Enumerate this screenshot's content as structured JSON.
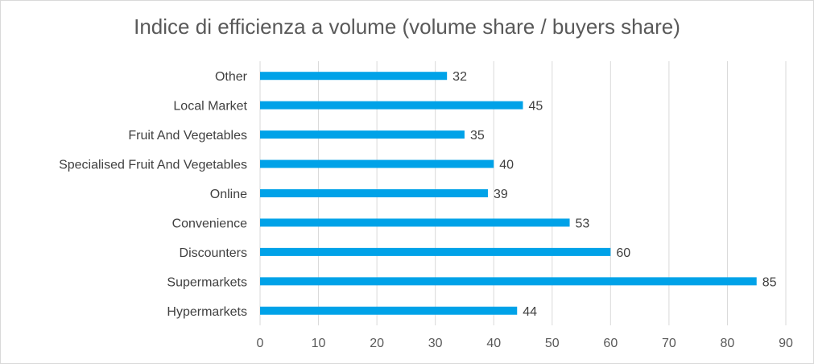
{
  "chart_data": {
    "type": "bar",
    "orientation": "horizontal",
    "title": "Indice di efficienza a volume (volume share / buyers share)",
    "categories": [
      "Other",
      "Local Market",
      "Fruit And Vegetables",
      "Specialised Fruit And Vegetables",
      "Online",
      "Convenience",
      "Discounters",
      "Supermarkets",
      "Hypermarkets"
    ],
    "values": [
      32,
      45,
      35,
      40,
      39,
      53,
      60,
      85,
      44
    ],
    "xlim": [
      0,
      90
    ],
    "xticks": [
      0,
      10,
      20,
      30,
      40,
      50,
      60,
      70,
      80,
      90
    ],
    "xlabel": "",
    "ylabel": "",
    "grid": true,
    "bar_color": "#00a2e8",
    "grid_color": "#d9d9d9"
  }
}
